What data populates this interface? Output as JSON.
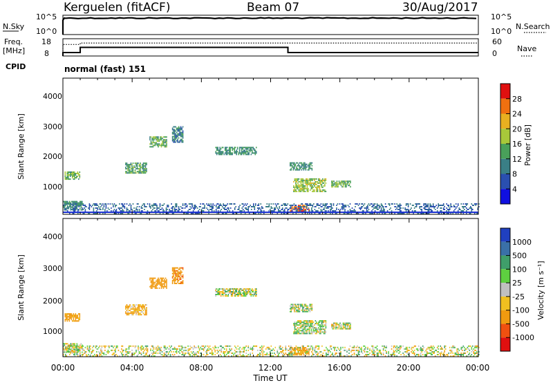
{
  "header": {
    "station": "Kerguelen (fitACF)",
    "beam": "Beam 07",
    "date": "30/Aug/2017"
  },
  "noise_panel": {
    "left_label": "N.Sky",
    "right_label": "N.Search",
    "left_ticks": [
      "10^5",
      "10^0"
    ],
    "right_ticks": [
      "10^5",
      "10^0"
    ]
  },
  "freq_panel": {
    "left_label_1": "Freq.",
    "left_label_2": "[MHz]",
    "left_ticks": [
      "18",
      "8"
    ],
    "right_label": "Nave",
    "right_ticks": [
      "60",
      "0"
    ],
    "cpid_label": "CPID",
    "cpid_value": "normal (fast) 151"
  },
  "x_axis": {
    "label": "Time UT",
    "ticks": [
      "00:00",
      "04:00",
      "08:00",
      "12:00",
      "16:00",
      "20:00",
      "00:00"
    ],
    "range_hours": [
      0,
      24
    ]
  },
  "power_panel": {
    "ylabel": "Slant Range [km]",
    "y_ticks": [
      "4000",
      "3000",
      "2000",
      "1000"
    ],
    "colorbar_label": "Power [dB]",
    "colorbar_ticks": [
      "28",
      "24",
      "20",
      "16",
      "12",
      "8",
      "4"
    ],
    "colors": [
      "#1010e0",
      "#2a4fb0",
      "#3a7f86",
      "#49a05a",
      "#a8c83a",
      "#e8b020",
      "#f07010",
      "#e01010"
    ]
  },
  "velocity_panel": {
    "ylabel": "Slant Range [km]",
    "y_ticks": [
      "4000",
      "3000",
      "2000",
      "1000"
    ],
    "colorbar_label": "Velocity [m s⁻¹]",
    "colorbar_ticks": [
      "1000",
      "500",
      "100",
      "25",
      "-25",
      "-100",
      "-500",
      "-1000"
    ],
    "colors": [
      "#2040c0",
      "#3a70a8",
      "#3f9e6a",
      "#5ed040",
      "#c0c0c0",
      "#f0c020",
      "#f09a10",
      "#f05010",
      "#e01010"
    ]
  },
  "chart_data": {
    "type": "heatmap",
    "title": "Kerguelen (fitACF) Beam 07 30/Aug/2017",
    "xlabel": "Time UT",
    "ylabel": "Slant Range [km]",
    "xlim_hours": [
      0,
      24
    ],
    "ylim_km": [
      180,
      4600
    ],
    "noise_search_level_fraction": 0.85,
    "frequency_mhz_segments": [
      {
        "start_hour": 0.0,
        "end_hour": 1.0,
        "value": 10.0
      },
      {
        "start_hour": 1.0,
        "end_hour": 13.0,
        "value": 13.0
      },
      {
        "start_hour": 13.0,
        "end_hour": 24.0,
        "value": 10.0
      }
    ],
    "nave_segments": [
      {
        "start_hour": 0.0,
        "end_hour": 1.0,
        "value": 40
      },
      {
        "start_hour": 1.0,
        "end_hour": 24.0,
        "value": 45
      }
    ],
    "scatter_patches": [
      {
        "t0": 0.1,
        "t1": 1.0,
        "r0": 1300,
        "r1": 1550,
        "power_db": 15,
        "velocity": -200
      },
      {
        "t0": 0.0,
        "t1": 1.1,
        "r0": 300,
        "r1": 600,
        "power_db": 12,
        "velocity": 0
      },
      {
        "t0": 3.6,
        "t1": 4.8,
        "r0": 1500,
        "r1": 1850,
        "power_db": 13,
        "velocity": -150
      },
      {
        "t0": 5.0,
        "t1": 6.0,
        "r0": 2350,
        "r1": 2700,
        "power_db": 15,
        "velocity": -300
      },
      {
        "t0": 6.3,
        "t1": 6.9,
        "r0": 2500,
        "r1": 3000,
        "power_db": 10,
        "velocity": -400
      },
      {
        "t0": 8.8,
        "t1": 11.2,
        "r0": 2100,
        "r1": 2350,
        "power_db": 12,
        "velocity": 20
      },
      {
        "t0": 13.1,
        "t1": 14.4,
        "r0": 1600,
        "r1": 1850,
        "power_db": 12,
        "velocity": 40
      },
      {
        "t0": 13.3,
        "t1": 15.2,
        "r0": 900,
        "r1": 1350,
        "power_db": 17,
        "velocity": 30
      },
      {
        "t0": 15.5,
        "t1": 16.6,
        "r0": 1050,
        "r1": 1250,
        "power_db": 14,
        "velocity": 0
      },
      {
        "t0": 13.1,
        "t1": 14.2,
        "r0": 220,
        "r1": 480,
        "power_db": 27,
        "velocity": -200
      },
      {
        "t0": 0.0,
        "t1": 24.0,
        "r0": 180,
        "r1": 500,
        "power_db": 8,
        "velocity": 0
      }
    ]
  }
}
